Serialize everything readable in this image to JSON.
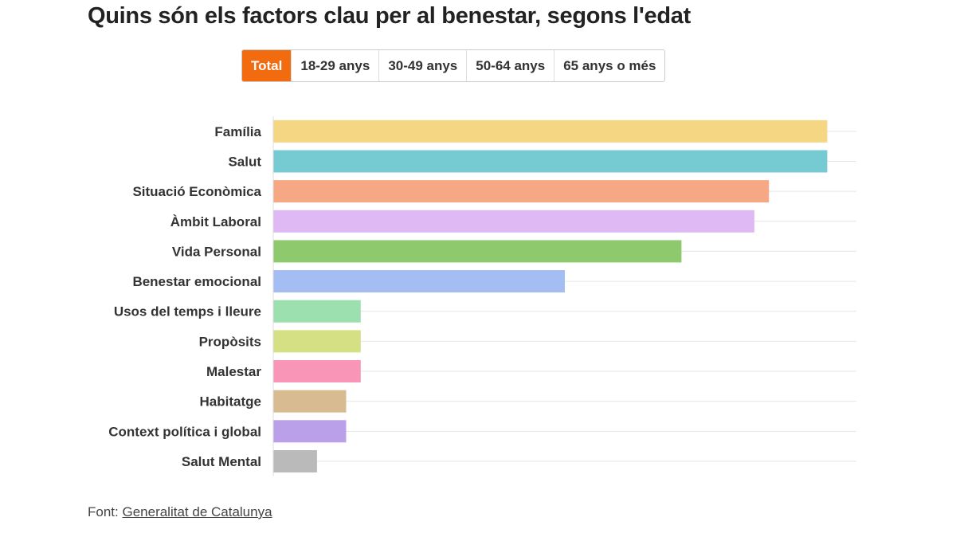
{
  "title": "Quins són els factors clau per al benestar, segons l'edat",
  "tabs": [
    {
      "label": "Total",
      "active": true
    },
    {
      "label": "18-29 anys",
      "active": false
    },
    {
      "label": "30-49 anys",
      "active": false
    },
    {
      "label": "50-64 anys",
      "active": false
    },
    {
      "label": "65 anys o més",
      "active": false
    }
  ],
  "accent_color": "#f26b0f",
  "source": {
    "prefix": "Font:",
    "link": "Generalitat de Catalunya"
  },
  "chart_data": {
    "type": "bar",
    "orientation": "horizontal",
    "categories": [
      "Família",
      "Salut",
      "Situació Econòmica",
      "Àmbit Laboral",
      "Vida Personal",
      "Benestar emocional",
      "Usos del temps i lleure",
      "Propòsits",
      "Malestar",
      "Habitatge",
      "Context política i global",
      "Salut Mental"
    ],
    "values": [
      38,
      38,
      34,
      33,
      28,
      20,
      6,
      6,
      6,
      5,
      5,
      3
    ],
    "colors": [
      "#f5d682",
      "#76cbd3",
      "#f6a783",
      "#dfb9f3",
      "#8fc96d",
      "#a4bdf2",
      "#9ce0b0",
      "#d4e083",
      "#f996b8",
      "#d9bb92",
      "#b9a0e8",
      "#bababa"
    ],
    "xlim": [
      0,
      40
    ],
    "grid": true,
    "title": "",
    "xlabel": "",
    "ylabel": ""
  }
}
